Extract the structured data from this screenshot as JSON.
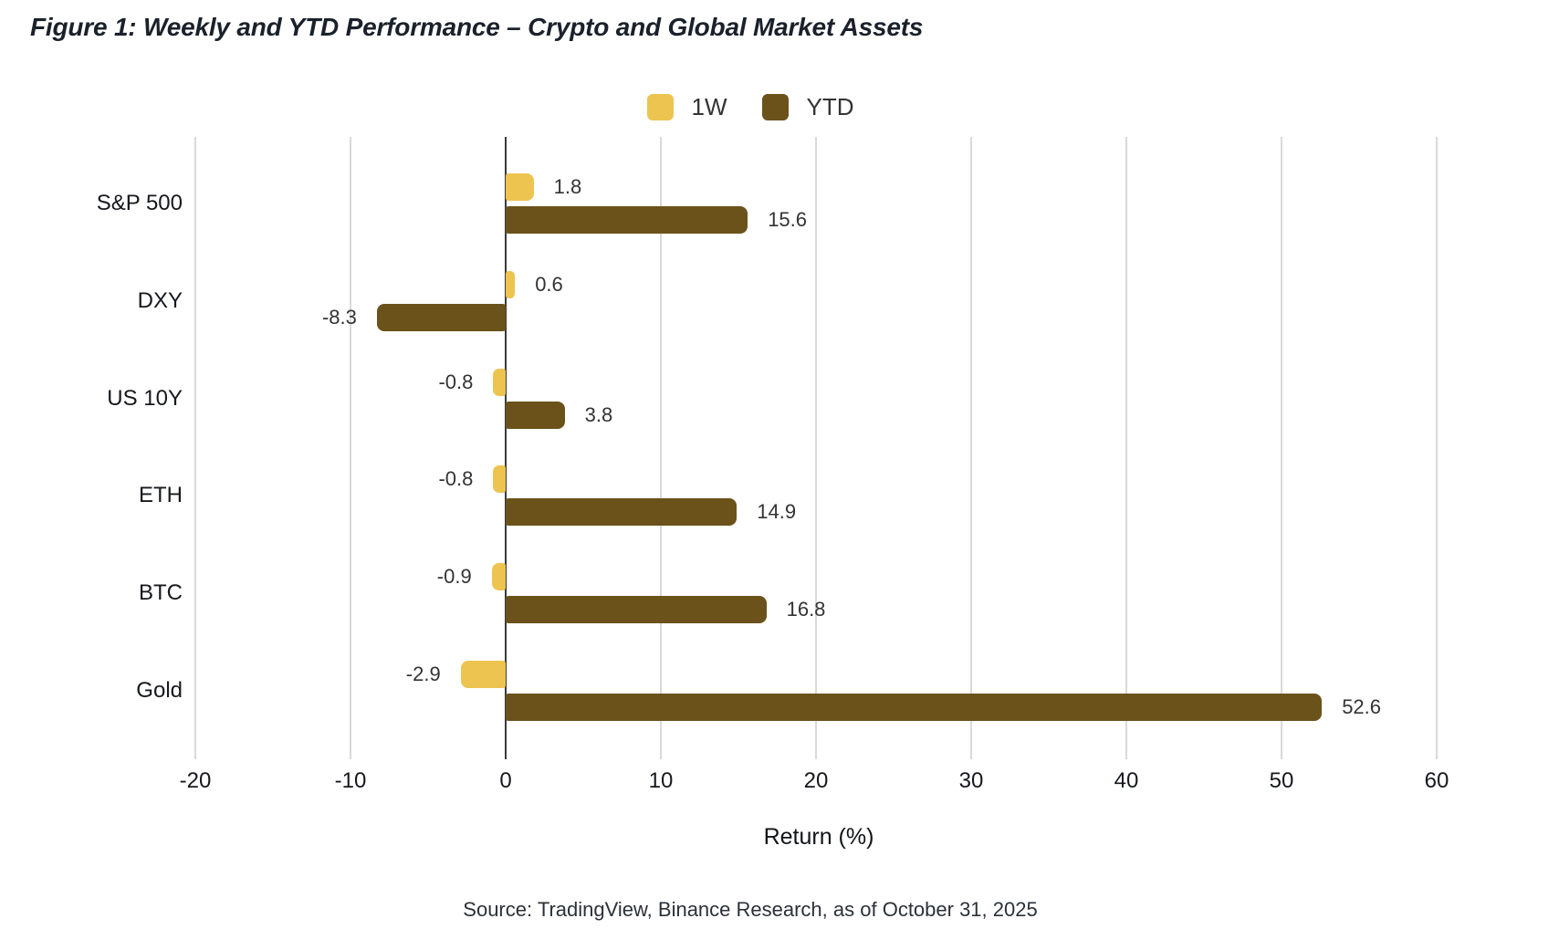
{
  "figure": {
    "title": "Figure 1: Weekly and YTD Performance – Crypto and Global Market Assets",
    "source": "Source: TradingView, Binance Research, as of October 31, 2025"
  },
  "colors": {
    "one_week_bar": "#ecc44f",
    "ytd_bar": "#6b521a",
    "title_text": "#1b212b",
    "axis_text": "#16181d",
    "value_text": "#333333",
    "legend_text": "#333333",
    "source_text": "#2b3139",
    "gridline": "#d9d9d9",
    "zero_line": "#3a3a3e",
    "background": "#ffffff"
  },
  "chart_data": {
    "type": "bar",
    "orientation": "horizontal",
    "title": "Figure 1: Weekly and YTD Performance – Crypto and Global Market Assets",
    "categories": [
      "S&P 500",
      "DXY",
      "US 10Y",
      "ETH",
      "BTC",
      "Gold"
    ],
    "series": [
      {
        "name": "1W",
        "color": "#ecc44f",
        "values": [
          1.8,
          0.6,
          -0.8,
          -0.8,
          -0.9,
          -2.9
        ]
      },
      {
        "name": "YTD",
        "color": "#6b521a",
        "values": [
          15.6,
          -8.3,
          3.8,
          14.9,
          16.8,
          52.6
        ]
      }
    ],
    "xlabel": "Return (%)",
    "ylabel": "",
    "xticks": [
      -20,
      -10,
      0,
      10,
      20,
      30,
      40,
      50,
      60
    ],
    "xlim": [
      -20,
      60
    ],
    "grid": "vertical",
    "legend_position": "top-center",
    "value_labels_decimals": 1
  }
}
